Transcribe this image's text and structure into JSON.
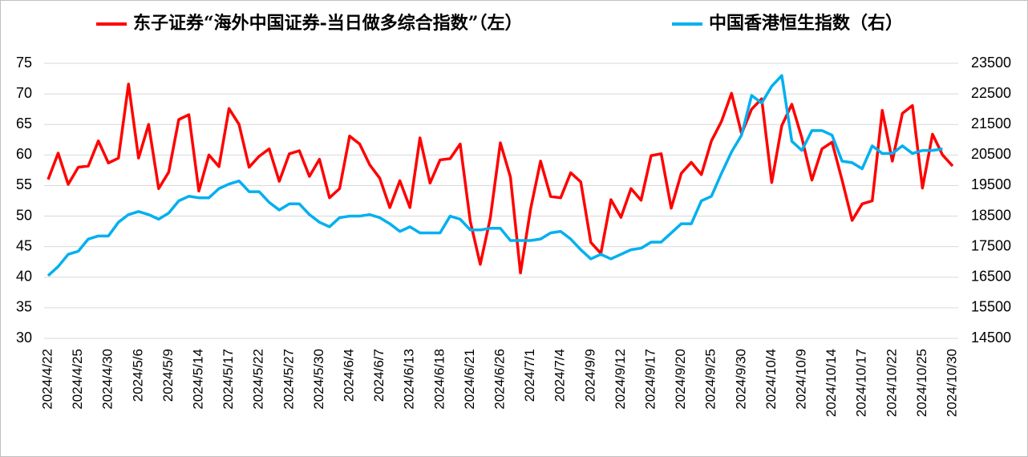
{
  "chart_data": {
    "type": "line",
    "categories": [
      "2024/4/22",
      null,
      null,
      "2024/4/25",
      null,
      null,
      "2024/4/30",
      null,
      null,
      "2024/5/6",
      null,
      null,
      "2024/5/9",
      null,
      null,
      "2024/5/14",
      null,
      null,
      "2024/5/17",
      null,
      null,
      "2024/5/22",
      null,
      null,
      "2024/5/27",
      null,
      null,
      "2024/5/30",
      null,
      null,
      "2024/6/4",
      null,
      null,
      "2024/6/7",
      null,
      null,
      "2024/6/13",
      null,
      null,
      "2024/6/18",
      null,
      null,
      "2024/6/21",
      null,
      null,
      "2024/6/26",
      null,
      null,
      "2024/7/1",
      null,
      null,
      "2024/7/4",
      null,
      null,
      "2024/9/9",
      null,
      null,
      "2024/9/12",
      null,
      null,
      "2024/9/17",
      null,
      null,
      "2024/9/20",
      null,
      null,
      "2024/9/25",
      null,
      null,
      "2024/9/30",
      null,
      null,
      "2024/10/4",
      null,
      null,
      "2024/10/9",
      null,
      null,
      "2024/10/14",
      null,
      null,
      "2024/10/17",
      null,
      null,
      "2024/10/22",
      null,
      null,
      "2024/10/25",
      null,
      null,
      "2024/10/30"
    ],
    "series": [
      {
        "name": "东子证券“海外中国证券-当日做多综合指数”（左）",
        "color": "#ff0000",
        "axis": "y",
        "values": [
          56,
          60.3,
          55.2,
          58,
          58.2,
          62.3,
          58.7,
          59.5,
          71.6,
          59.5,
          65,
          54.5,
          57.2,
          65.8,
          66.6,
          54.1,
          60,
          58.1,
          67.6,
          65,
          58,
          59.8,
          61,
          55.7,
          60.2,
          60.7,
          56.5,
          59.3,
          53,
          54.5,
          63.1,
          61.8,
          58.4,
          56.2,
          51.4,
          55.8,
          51.4,
          62.8,
          55.4,
          59.2,
          59.4,
          61.8,
          49.2,
          42.1,
          49.7,
          62,
          56.4,
          40.7,
          51.1,
          59,
          53.2,
          53,
          57.1,
          55.6,
          45.7,
          43.9,
          52.7,
          49.8,
          54.5,
          52.6,
          59.9,
          60.2,
          51.3,
          57,
          58.8,
          56.8,
          62.3,
          65.5,
          70.1,
          63.5,
          67.5,
          69.2,
          55.5,
          64.8,
          68.3,
          62.8,
          55.9,
          61,
          62.1,
          55.9,
          49.3,
          52,
          52.5,
          67.3,
          59,
          66.8,
          68.1,
          54.6,
          63.4,
          60,
          58.2
        ]
      },
      {
        "name": "中国香港恒生指数（右）",
        "color": "#00b0f0",
        "axis": "y2",
        "values": [
          16550,
          16850,
          17250,
          17350,
          17750,
          17850,
          17850,
          18300,
          18550,
          18650,
          18550,
          18400,
          18600,
          19000,
          19150,
          19100,
          19100,
          19400,
          19550,
          19650,
          19300,
          19300,
          18950,
          18700,
          18900,
          18900,
          18550,
          18300,
          18150,
          18450,
          18500,
          18500,
          18550,
          18450,
          18250,
          18000,
          18150,
          17950,
          17950,
          17950,
          18500,
          18400,
          18050,
          18050,
          18100,
          18100,
          17700,
          17700,
          17700,
          17750,
          17950,
          18000,
          17750,
          17400,
          17100,
          17250,
          17100,
          17250,
          17400,
          17450,
          17650,
          17650,
          17950,
          18250,
          18250,
          19000,
          19150,
          19900,
          20600,
          21150,
          22450,
          22200,
          22750,
          23100,
          20950,
          20650,
          21300,
          21300,
          21150,
          20300,
          20250,
          20050,
          20800,
          20550,
          20550,
          20800,
          20550,
          20650,
          20650,
          20700,
          null
        ]
      }
    ],
    "ylim": [
      30,
      75
    ],
    "yticks": [
      30,
      35,
      40,
      45,
      50,
      55,
      60,
      65,
      70,
      75
    ],
    "y2lim": [
      14500,
      23500
    ],
    "y2ticks": [
      14500,
      15500,
      16500,
      17500,
      18500,
      19500,
      20500,
      21500,
      22500,
      23500
    ],
    "grid": true,
    "legend": "top"
  }
}
